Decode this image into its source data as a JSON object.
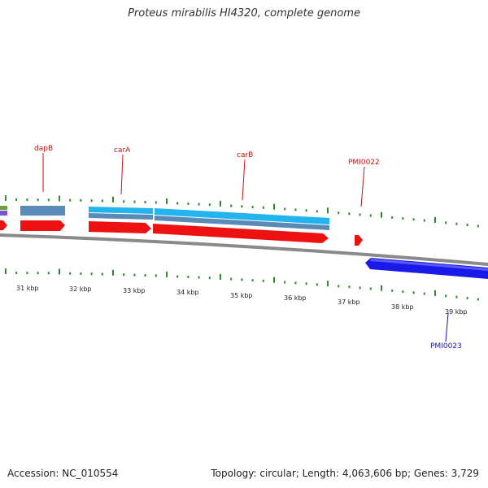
{
  "title": "Proteus mirabilis HI4320, complete genome",
  "footer": {
    "accession": "Accession: NC_010554",
    "summary": "Topology: circular; Length: 4,063,606 bp; Genes: 3,729"
  },
  "colors": {
    "forward_gene": "#ee1111",
    "reverse_gene": "#1a1ae8",
    "cds_cyan": "#22b4ee",
    "cds_steel": "#5a8ab8",
    "backbone": "#8a8a8a",
    "tick": "#2a8a2a",
    "forward_label": "#cc1111",
    "reverse_label": "#1111cc"
  },
  "scale_labels": [
    "31 kbp",
    "32 kbp",
    "33 kbp",
    "34 kbp",
    "35 kbp",
    "36 kbp",
    "37 kbp",
    "38 kbp",
    "39 kbp"
  ],
  "gene_labels": {
    "forward": [
      "dapB",
      "carA",
      "carB",
      "PMI0022"
    ],
    "reverse": [
      "PMI0023"
    ]
  }
}
